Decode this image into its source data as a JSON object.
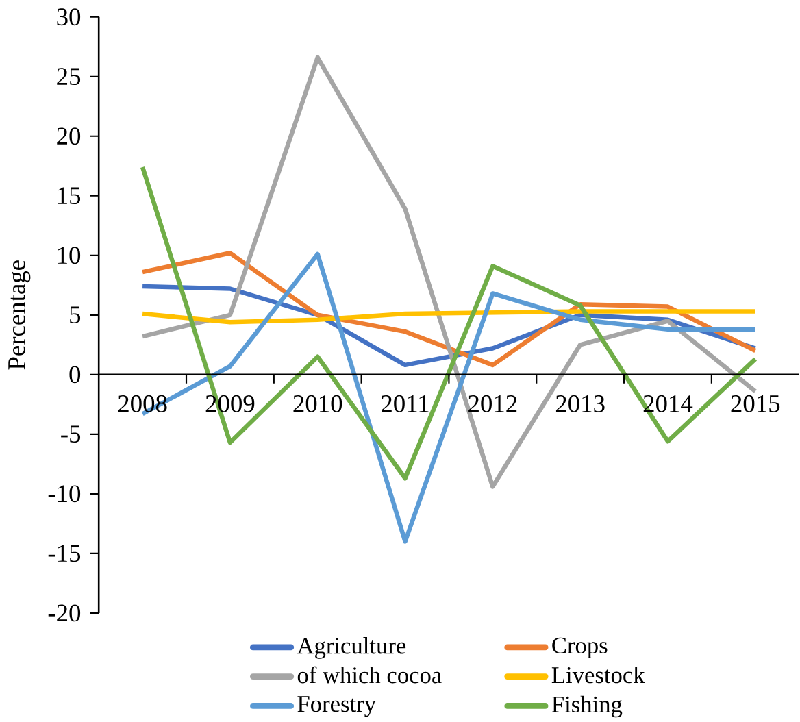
{
  "chart_data": {
    "type": "line",
    "ylabel": "Percentage",
    "categories": [
      "2008",
      "2009",
      "2010",
      "2011",
      "2012",
      "2013",
      "2014",
      "2015"
    ],
    "series": [
      {
        "name": "Agriculture",
        "color": "#4472c4",
        "values": [
          7.4,
          7.2,
          5.0,
          0.8,
          2.2,
          5.0,
          4.6,
          2.2
        ]
      },
      {
        "name": "Crops",
        "color": "#ed7d31",
        "values": [
          8.6,
          10.2,
          5.0,
          3.6,
          0.8,
          5.9,
          5.7,
          2.0
        ]
      },
      {
        "name": "of which cocoa",
        "color": "#a5a5a5",
        "values": [
          3.2,
          5.0,
          26.6,
          13.9,
          -9.4,
          2.5,
          4.5,
          -1.4
        ]
      },
      {
        "name": "Livestock",
        "color": "#ffc000",
        "values": [
          5.1,
          4.4,
          4.6,
          5.1,
          5.2,
          5.3,
          5.3,
          5.3
        ]
      },
      {
        "name": "Forestry",
        "color": "#5b9bd5",
        "values": [
          -3.3,
          0.7,
          10.1,
          -14.0,
          6.8,
          4.6,
          3.8,
          3.8
        ]
      },
      {
        "name": "Fishing",
        "color": "#70ad47",
        "values": [
          17.4,
          -5.7,
          1.5,
          -8.7,
          9.1,
          5.8,
          -5.6,
          1.3
        ]
      }
    ],
    "ylim": [
      -20,
      30
    ],
    "yticks": [
      -20,
      -15,
      -10,
      -5,
      0,
      5,
      10,
      15,
      20,
      25,
      30
    ],
    "legend": "bottom",
    "marker": "none",
    "line_style": "solid"
  }
}
